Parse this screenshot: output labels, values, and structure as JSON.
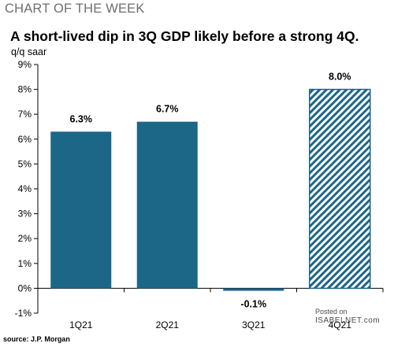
{
  "header": {
    "kicker": "CHART OF THE WEEK",
    "title": "A short-lived dip in 3Q GDP likely before a strong 4Q.",
    "units": "q/q saar"
  },
  "footer": {
    "source": "source: J.P. Morgan",
    "watermark_line1": "Posted on",
    "watermark_line2": "ISABELNET.com"
  },
  "colors": {
    "bar": "#1c6688",
    "hatch": "#1c6688",
    "axis": "#000000"
  },
  "chart_data": {
    "type": "bar",
    "title": "A short-lived dip in 3Q GDP likely before a strong 4Q.",
    "ylabel": "q/q saar",
    "xlabel": "",
    "categories": [
      "1Q21",
      "2Q21",
      "3Q21",
      "4Q21"
    ],
    "values": [
      6.3,
      6.7,
      -0.1,
      8.0
    ],
    "data_labels": [
      "6.3%",
      "6.7%",
      "-0.1%",
      "8.0%"
    ],
    "forecast": [
      false,
      false,
      false,
      true
    ],
    "ylim": [
      -1,
      9
    ],
    "yticks": [
      -1,
      0,
      1,
      2,
      3,
      4,
      5,
      6,
      7,
      8,
      9
    ],
    "ytick_labels": [
      "-1%",
      "0%",
      "1%",
      "2%",
      "3%",
      "4%",
      "5%",
      "6%",
      "7%",
      "8%",
      "9%"
    ],
    "grid": false,
    "legend": "none"
  }
}
